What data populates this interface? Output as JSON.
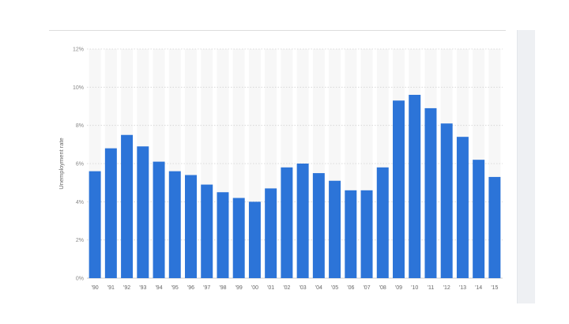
{
  "chart_data": {
    "type": "bar",
    "ylabel": "Unemployment rate",
    "categories": [
      "'90",
      "'91",
      "'92",
      "'93",
      "'94",
      "'95",
      "'96",
      "'97",
      "'98",
      "'99",
      "'00",
      "'01",
      "'02",
      "'03",
      "'04",
      "'05",
      "'06",
      "'07",
      "'08",
      "'09",
      "'10",
      "'11",
      "'12",
      "'13",
      "'14",
      "'15"
    ],
    "values": [
      5.6,
      6.8,
      7.5,
      6.9,
      6.1,
      5.6,
      5.4,
      4.9,
      4.5,
      4.2,
      4.0,
      4.7,
      5.8,
      6.0,
      5.5,
      5.1,
      4.6,
      4.6,
      5.8,
      9.3,
      9.6,
      8.9,
      8.1,
      7.4,
      6.2,
      5.3
    ],
    "ylim": [
      0,
      12
    ],
    "y_ticks": [
      "0%",
      "2%",
      "4%",
      "6%",
      "8%",
      "10%",
      "12%"
    ],
    "grid": true,
    "bar_color": "#2c74d8"
  }
}
